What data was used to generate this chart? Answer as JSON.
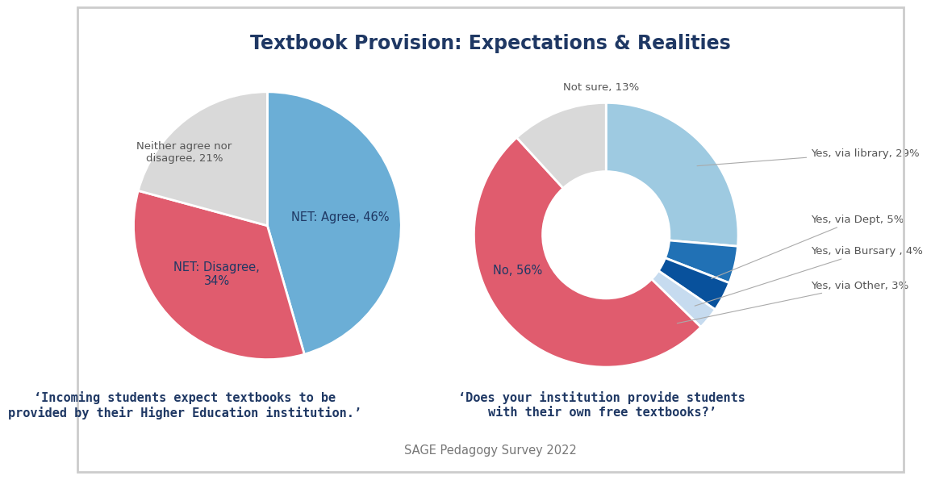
{
  "title": "Textbook Provision: Expectations & Realities",
  "title_color": "#1f3864",
  "title_fontsize": 17,
  "background_color": "#ffffff",
  "pie1": {
    "values": [
      46,
      34,
      21
    ],
    "colors": [
      "#6baed6",
      "#e05c6e",
      "#d9d9d9"
    ],
    "startangle": 90
  },
  "pie2": {
    "values": [
      29,
      5,
      4,
      3,
      56,
      13
    ],
    "colors": [
      "#9ecae1",
      "#2171b5",
      "#08519c",
      "#c6dbef",
      "#e05c6e",
      "#d9d9d9"
    ],
    "startangle": 90,
    "donut_width": 0.52
  },
  "pie1_labels": {
    "agree": {
      "text": "NET: Agree, 46%",
      "color": "#1f3864",
      "fontsize": 10.5
    },
    "disagree": {
      "text": "NET: Disagree,\n34%",
      "color": "#1f3864",
      "fontsize": 10.5
    },
    "neither": {
      "text": "Neither agree nor\ndisagree, 21%",
      "color": "#555555",
      "fontsize": 9.5
    }
  },
  "pie2_labels": {
    "no": {
      "text": "No, 56%",
      "color": "#1f3864",
      "fontsize": 10.5
    },
    "not_sure": {
      "text": "Not sure, 13%",
      "color": "#555555",
      "fontsize": 9.5
    },
    "library": {
      "text": "Yes, via library, 29%",
      "color": "#555555",
      "fontsize": 9.5
    },
    "dept": {
      "text": "Yes, via Dept, 5%",
      "color": "#555555",
      "fontsize": 9.5
    },
    "bursary": {
      "text": "Yes, via Bursary , 4%",
      "color": "#555555",
      "fontsize": 9.5
    },
    "other": {
      "text": "Yes, via Other, 3%",
      "color": "#555555",
      "fontsize": 9.5
    }
  },
  "caption1": "‘Incoming students expect textbooks to be\nprovided by their Higher Education institution.’",
  "caption2": "‘Does your institution provide students\nwith their own free textbooks?’",
  "caption_color": "#1f3864",
  "caption_fontsize": 11,
  "footer": "SAGE Pedagogy Survey 2022",
  "footer_color": "#777777",
  "footer_fontsize": 10.5
}
